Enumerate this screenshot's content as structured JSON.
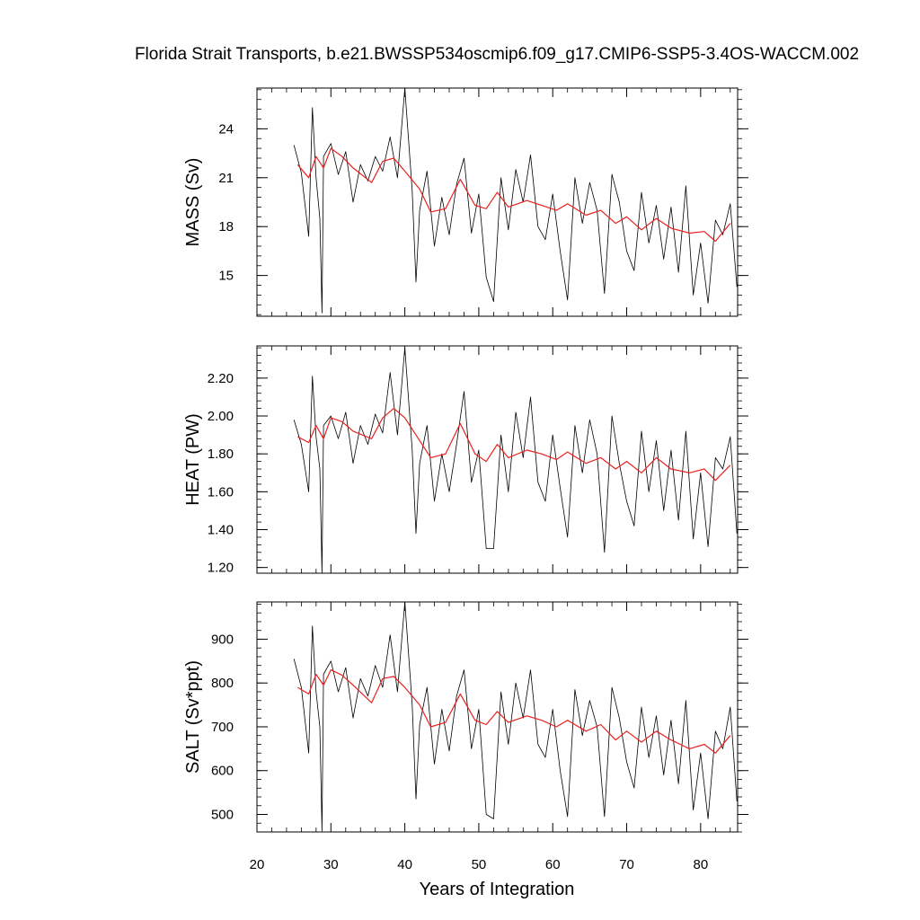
{
  "figure": {
    "title": "Florida Strait Transports, b.e21.BWSSP534oscmip6.f09_g17.CMIP6-SSP5-3.4OS-WACCM.002",
    "xlabel": "Years of Integration",
    "colors": {
      "monthly": "#000000",
      "smooth": "#e8211f",
      "frame": "#000000"
    }
  },
  "chart_data": [
    {
      "type": "line",
      "panel": "mass",
      "ylabel": "MASS (Sv)",
      "xlim": [
        20,
        85
      ],
      "ylim": [
        12.5,
        26.5
      ],
      "x_ticks": [
        20,
        30,
        40,
        50,
        60,
        70,
        80
      ],
      "y_ticks": [
        15,
        18,
        21,
        24
      ],
      "y_tick_labels": [
        "15",
        "18",
        "21",
        "24"
      ],
      "x_tick_labels_shown": false,
      "series": [
        {
          "style": "monthly",
          "x": [
            25.0,
            26.0,
            27.0,
            27.5,
            28.0,
            28.5,
            28.8,
            29.0,
            30.0,
            31.0,
            32.0,
            33.0,
            34.0,
            35.0,
            36.0,
            37.0,
            38.0,
            39.0,
            40.0,
            41.0,
            41.5,
            42.0,
            43.0,
            44.0,
            45.0,
            46.0,
            47.0,
            48.0,
            49.0,
            50.0,
            51.0,
            52.0,
            53.0,
            54.0,
            55.0,
            56.0,
            57.0,
            58.0,
            59.0,
            60.0,
            61.0,
            62.0,
            63.0,
            64.0,
            65.0,
            66.0,
            67.0,
            68.0,
            69.0,
            70.0,
            71.0,
            72.0,
            73.0,
            74.0,
            75.0,
            76.0,
            77.0,
            78.0,
            79.0,
            80.0,
            81.0,
            82.0,
            83.0,
            84.0,
            84.9
          ],
          "values": [
            23.0,
            21.3,
            17.4,
            25.3,
            21.0,
            18.5,
            12.7,
            22.3,
            23.1,
            21.2,
            22.6,
            19.5,
            21.8,
            20.8,
            22.3,
            21.4,
            23.5,
            21.0,
            26.5,
            20.2,
            14.6,
            19.0,
            21.4,
            16.8,
            19.8,
            17.5,
            20.6,
            22.2,
            17.6,
            20.0,
            14.9,
            13.4,
            21.0,
            17.8,
            21.5,
            19.5,
            22.4,
            18.0,
            17.2,
            20.0,
            16.5,
            13.5,
            21.0,
            18.2,
            20.7,
            19.0,
            13.9,
            21.2,
            19.5,
            16.5,
            15.3,
            20.1,
            17.0,
            19.3,
            16.0,
            19.2,
            15.2,
            20.5,
            13.8,
            17.0,
            13.3,
            18.4,
            17.5,
            19.4,
            14.3
          ]
        },
        {
          "style": "smooth",
          "x": [
            25.5,
            27.0,
            28.0,
            29.0,
            30.0,
            31.5,
            33.0,
            35.5,
            37.0,
            38.5,
            40.0,
            42.0,
            43.5,
            45.5,
            47.5,
            49.5,
            51.0,
            52.5,
            54.0,
            56.5,
            58.5,
            60.5,
            62.0,
            64.5,
            66.5,
            68.5,
            70.0,
            72.0,
            74.0,
            76.0,
            78.5,
            80.5,
            82.0,
            84.0
          ],
          "values": [
            21.8,
            21.0,
            22.3,
            21.6,
            22.8,
            22.3,
            21.6,
            20.7,
            22.0,
            22.2,
            21.4,
            20.3,
            18.9,
            19.1,
            20.9,
            19.3,
            19.1,
            20.1,
            19.2,
            19.6,
            19.3,
            19.0,
            19.4,
            18.7,
            19.0,
            18.2,
            18.6,
            17.8,
            18.5,
            17.9,
            17.6,
            17.7,
            17.1,
            18.2
          ]
        }
      ]
    },
    {
      "type": "line",
      "panel": "heat",
      "ylabel": "HEAT (PW)",
      "xlim": [
        20,
        85
      ],
      "ylim": [
        1.17,
        2.37
      ],
      "x_ticks": [
        20,
        30,
        40,
        50,
        60,
        70,
        80
      ],
      "y_ticks": [
        1.2,
        1.4,
        1.6,
        1.8,
        2.0,
        2.2
      ],
      "y_tick_labels": [
        "1.20",
        "1.40",
        "1.60",
        "1.80",
        "2.00",
        "2.20"
      ],
      "x_tick_labels_shown": false,
      "series": [
        {
          "style": "monthly",
          "x": [
            25.0,
            26.0,
            27.0,
            27.5,
            28.0,
            28.5,
            28.8,
            29.0,
            30.0,
            31.0,
            32.0,
            33.0,
            34.0,
            35.0,
            36.0,
            37.0,
            38.0,
            39.0,
            40.0,
            41.0,
            41.5,
            42.0,
            43.0,
            44.0,
            45.0,
            46.0,
            47.0,
            48.0,
            49.0,
            50.0,
            51.0,
            52.0,
            53.0,
            54.0,
            55.0,
            56.0,
            57.0,
            58.0,
            59.0,
            60.0,
            61.0,
            62.0,
            63.0,
            64.0,
            65.0,
            66.0,
            67.0,
            68.0,
            69.0,
            70.0,
            71.0,
            72.0,
            73.0,
            74.0,
            75.0,
            76.0,
            77.0,
            78.0,
            79.0,
            80.0,
            81.0,
            82.0,
            83.0,
            84.0,
            84.9
          ],
          "values": [
            1.98,
            1.85,
            1.6,
            2.21,
            1.89,
            1.72,
            1.17,
            1.95,
            2.0,
            1.88,
            2.02,
            1.75,
            1.95,
            1.85,
            2.01,
            1.91,
            2.23,
            1.9,
            2.36,
            1.82,
            1.38,
            1.75,
            1.95,
            1.55,
            1.8,
            1.6,
            1.85,
            2.13,
            1.65,
            1.82,
            1.3,
            1.3,
            1.9,
            1.6,
            2.02,
            1.78,
            2.1,
            1.65,
            1.55,
            1.9,
            1.62,
            1.36,
            1.95,
            1.7,
            1.98,
            1.8,
            1.28,
            2.0,
            1.75,
            1.55,
            1.42,
            1.92,
            1.6,
            1.87,
            1.5,
            1.82,
            1.45,
            1.92,
            1.35,
            1.7,
            1.31,
            1.78,
            1.72,
            1.89,
            1.38
          ]
        },
        {
          "style": "smooth",
          "x": [
            25.5,
            27.0,
            28.0,
            29.0,
            30.0,
            31.5,
            33.0,
            35.5,
            37.0,
            38.5,
            40.0,
            42.0,
            43.5,
            45.5,
            47.5,
            49.5,
            51.0,
            52.5,
            54.0,
            56.5,
            58.5,
            60.5,
            62.0,
            64.5,
            66.5,
            68.5,
            70.0,
            72.0,
            74.0,
            76.0,
            78.5,
            80.5,
            82.0,
            84.0
          ],
          "values": [
            1.89,
            1.86,
            1.95,
            1.88,
            1.99,
            1.97,
            1.92,
            1.88,
            1.99,
            2.04,
            1.99,
            1.87,
            1.78,
            1.8,
            1.96,
            1.8,
            1.76,
            1.85,
            1.78,
            1.82,
            1.8,
            1.77,
            1.81,
            1.75,
            1.78,
            1.72,
            1.76,
            1.7,
            1.78,
            1.72,
            1.7,
            1.72,
            1.66,
            1.74
          ]
        }
      ]
    },
    {
      "type": "line",
      "panel": "salt",
      "ylabel": "SALT (Sv*ppt)",
      "xlim": [
        20,
        85
      ],
      "ylim": [
        460,
        985
      ],
      "x_ticks": [
        20,
        30,
        40,
        50,
        60,
        70,
        80
      ],
      "y_ticks": [
        500,
        600,
        700,
        800,
        900
      ],
      "y_tick_labels": [
        "500",
        "600",
        "700",
        "800",
        "900"
      ],
      "x_tick_labels": [
        "20",
        "30",
        "40",
        "50",
        "60",
        "70",
        "80"
      ],
      "x_tick_labels_shown": true,
      "series": [
        {
          "style": "monthly",
          "x": [
            25.0,
            26.0,
            27.0,
            27.5,
            28.0,
            28.5,
            28.8,
            29.0,
            30.0,
            31.0,
            32.0,
            33.0,
            34.0,
            35.0,
            36.0,
            37.0,
            38.0,
            39.0,
            40.0,
            41.0,
            41.5,
            42.0,
            43.0,
            44.0,
            45.0,
            46.0,
            47.0,
            48.0,
            49.0,
            50.0,
            51.0,
            52.0,
            53.0,
            54.0,
            55.0,
            56.0,
            57.0,
            58.0,
            59.0,
            60.0,
            61.0,
            62.0,
            63.0,
            64.0,
            65.0,
            66.0,
            67.0,
            68.0,
            69.0,
            70.0,
            71.0,
            72.0,
            73.0,
            74.0,
            75.0,
            76.0,
            77.0,
            78.0,
            79.0,
            80.0,
            81.0,
            82.0,
            83.0,
            84.0,
            84.9
          ],
          "values": [
            855,
            790,
            640,
            930,
            780,
            700,
            462,
            820,
            850,
            780,
            835,
            720,
            810,
            770,
            840,
            790,
            910,
            780,
            985,
            750,
            535,
            705,
            790,
            615,
            740,
            645,
            770,
            830,
            650,
            740,
            500,
            490,
            780,
            660,
            800,
            720,
            830,
            660,
            630,
            740,
            600,
            495,
            785,
            680,
            760,
            700,
            495,
            790,
            720,
            620,
            560,
            745,
            630,
            725,
            590,
            715,
            570,
            760,
            510,
            640,
            490,
            690,
            650,
            745,
            530
          ]
        },
        {
          "style": "smooth",
          "x": [
            25.5,
            27.0,
            28.0,
            29.0,
            30.0,
            31.5,
            33.0,
            35.5,
            37.0,
            38.5,
            40.0,
            42.0,
            43.5,
            45.5,
            47.5,
            49.5,
            51.0,
            52.5,
            54.0,
            56.5,
            58.5,
            60.5,
            62.0,
            64.5,
            66.5,
            68.5,
            70.0,
            72.0,
            74.0,
            76.0,
            78.5,
            80.5,
            82.0,
            84.0
          ],
          "values": [
            790,
            775,
            820,
            795,
            830,
            818,
            795,
            755,
            810,
            815,
            790,
            750,
            700,
            710,
            775,
            715,
            705,
            735,
            710,
            725,
            715,
            700,
            715,
            690,
            705,
            670,
            690,
            665,
            690,
            670,
            650,
            660,
            640,
            680
          ]
        }
      ]
    }
  ]
}
